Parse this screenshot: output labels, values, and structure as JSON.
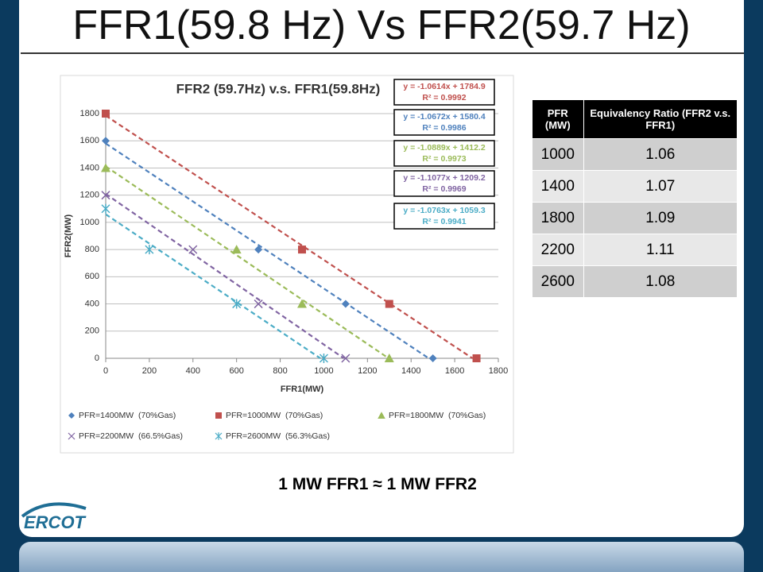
{
  "title": "FFR1(59.8 Hz) Vs FFR2(59.7 Hz)",
  "chart_data": {
    "type": "scatter",
    "title": "FFR2 (59.7Hz) v.s. FFR1(59.8Hz)",
    "x_label": "FFR1(MW)",
    "y_label": "FFR2(MW)",
    "xlim": [
      0,
      1800
    ],
    "ylim": [
      0,
      1800
    ],
    "xticks": [
      0,
      200,
      400,
      600,
      800,
      1000,
      1200,
      1400,
      1600,
      1800
    ],
    "yticks": [
      0,
      200,
      400,
      600,
      800,
      1000,
      1200,
      1400,
      1600,
      1800
    ],
    "grid": true,
    "series": [
      {
        "name": "PFR=1400MW  (70%Gas)",
        "color": "#4f81bd",
        "marker": "diamond",
        "x": [
          0,
          700,
          1100,
          1500
        ],
        "values": [
          1600,
          800,
          400,
          0
        ],
        "trendline": {
          "slope": -1.0672,
          "intercept": 1580.4,
          "label": "y = -1.0672x + 1580.4",
          "r2": 0.9986,
          "r2_label": "R² = 0.9986"
        }
      },
      {
        "name": "PFR=1000MW  (70%Gas)",
        "color": "#c0504d",
        "marker": "square",
        "x": [
          0,
          900,
          1300,
          1700
        ],
        "values": [
          1800,
          800,
          400,
          0
        ],
        "trendline": {
          "slope": -1.0614,
          "intercept": 1784.9,
          "label": "y = -1.0614x + 1784.9",
          "r2": 0.9992,
          "r2_label": "R² = 0.9992"
        }
      },
      {
        "name": "PFR=1800MW  (70%Gas)",
        "color": "#9bbb59",
        "marker": "triangle",
        "x": [
          0,
          600,
          900,
          1300
        ],
        "values": [
          1400,
          800,
          400,
          0
        ],
        "trendline": {
          "slope": -1.0889,
          "intercept": 1412.2,
          "label": "y = -1.0889x + 1412.2",
          "r2": 0.9973,
          "r2_label": "R² = 0.9973"
        }
      },
      {
        "name": "PFR=2200MW  (66.5%Gas)",
        "color": "#8064a2",
        "marker": "x",
        "x": [
          0,
          400,
          700,
          1100
        ],
        "values": [
          1200,
          800,
          400,
          0
        ],
        "trendline": {
          "slope": -1.1077,
          "intercept": 1209.2,
          "label": "y = -1.1077x + 1209.2",
          "r2": 0.9969,
          "r2_label": "R² = 0.9969"
        }
      },
      {
        "name": "PFR=2600MW  (56.3%Gas)",
        "color": "#4bacc6",
        "marker": "star",
        "x": [
          0,
          200,
          600,
          1000
        ],
        "values": [
          1100,
          800,
          400,
          0
        ],
        "trendline": {
          "slope": -1.0763,
          "intercept": 1059.3,
          "label": "y = -1.0763x + 1059.3",
          "r2": 0.9941,
          "r2_label": "R² = 0.9941"
        }
      }
    ]
  },
  "table": {
    "header": [
      "PFR (MW)",
      "Equivalency Ratio (FFR2 v.s. FFR1)"
    ],
    "rows": [
      [
        "1000",
        "1.06"
      ],
      [
        "1400",
        "1.07"
      ],
      [
        "1800",
        "1.09"
      ],
      [
        "2200",
        "1.11"
      ],
      [
        "2600",
        "1.08"
      ]
    ]
  },
  "note": "1 MW FFR1 ≈ 1 MW FFR2",
  "logo": "ERCOT"
}
